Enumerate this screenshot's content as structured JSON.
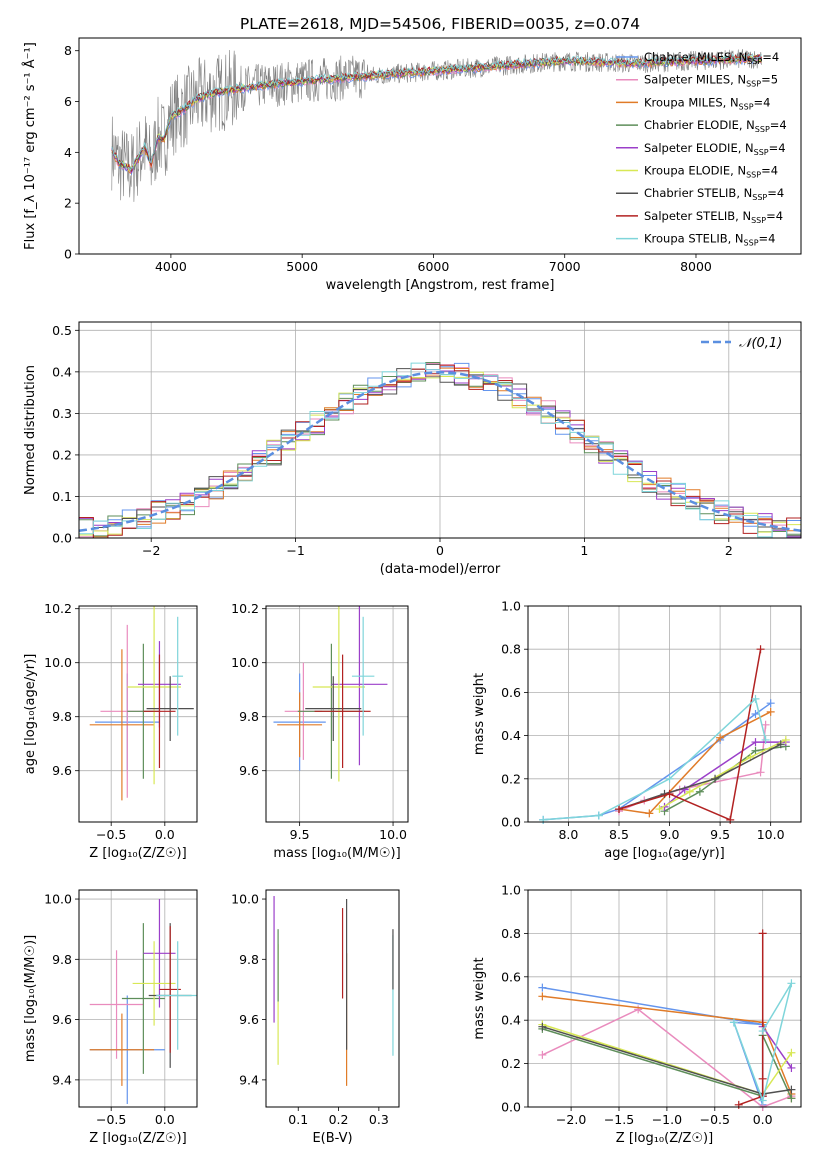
{
  "figure": {
    "title": "PLATE=2618, MJD=54506, FIBERID=0035, z=0.074"
  },
  "chart_data": [
    {
      "id": "spectrum",
      "type": "line",
      "xlabel": "wavelength [Angstrom, rest frame]",
      "ylabel": "Flux [f_λ 10⁻¹⁷ erg cm⁻² s⁻¹ Å⁻¹]",
      "xlim": [
        3300,
        8800
      ],
      "ylim": [
        0,
        8.5
      ],
      "xticks": [
        4000,
        5000,
        6000,
        7000,
        8000
      ],
      "yticks": [
        0,
        2,
        4,
        6,
        8
      ],
      "grid": false,
      "legend_position": "top-right",
      "data_color": "#808080",
      "model_x": [
        3550,
        3600,
        3700,
        3800,
        3850,
        3900,
        3950,
        4000,
        4100,
        4200,
        4300,
        4500,
        5000,
        5500,
        6000,
        6500,
        7000,
        7500,
        8000,
        8500
      ],
      "model_y": [
        4.1,
        3.6,
        3.3,
        4.2,
        3.5,
        4.6,
        4.5,
        5.4,
        5.7,
        6.1,
        6.3,
        6.5,
        6.8,
        7.0,
        7.2,
        7.4,
        7.6,
        7.5,
        7.6,
        7.7
      ],
      "series": [
        {
          "name": "Chabrier MILES, N_SSP=4",
          "color": "#6495ED"
        },
        {
          "name": "Salpeter MILES, N_SSP=5",
          "color": "#E98BBD"
        },
        {
          "name": "Kroupa MILES, N_SSP=4",
          "color": "#E07B28"
        },
        {
          "name": "Chabrier ELODIE, N_SSP=4",
          "color": "#5E8E5A"
        },
        {
          "name": "Salpeter ELODIE, N_SSP=4",
          "color": "#9B3FC9"
        },
        {
          "name": "Kroupa ELODIE, N_SSP=4",
          "color": "#D8E855"
        },
        {
          "name": "Chabrier STELIB, N_SSP=4",
          "color": "#505050"
        },
        {
          "name": "Salpeter STELIB, N_SSP=4",
          "color": "#B22222"
        },
        {
          "name": "Kroupa STELIB, N_SSP=4",
          "color": "#7FD5DA"
        }
      ]
    },
    {
      "id": "residuals",
      "type": "histogram",
      "xlabel": "(data-model)/error",
      "ylabel": "Normed distribution",
      "xlim": [
        -2.5,
        2.5
      ],
      "ylim": [
        0,
        0.52
      ],
      "xticks": [
        -2,
        -1,
        0,
        1,
        2
      ],
      "yticks": [
        0.0,
        0.1,
        0.2,
        0.3,
        0.4,
        0.5
      ],
      "grid": true,
      "legend_position": "top-right",
      "reference_curve": {
        "name": "𝒩(0,1)",
        "color": "#5B8FE0"
      },
      "bin_width": 0.1
    },
    {
      "id": "age-vs-Z",
      "type": "errorbar",
      "xlabel": "Z [log₁₀(Z/Z☉)]",
      "ylabel": "age  [log₁₀(age/yr)]",
      "xlim": [
        -0.8,
        0.3
      ],
      "ylim": [
        9.41,
        10.21
      ],
      "xticks": [
        -0.5,
        0.0
      ],
      "yticks": [
        9.6,
        9.8,
        10.0,
        10.2
      ],
      "grid": true,
      "points": [
        {
          "x": -0.35,
          "y": 9.78,
          "xerr": 0.3,
          "yerr": 0.18,
          "color": "#6495ED"
        },
        {
          "x": -0.35,
          "y": 9.82,
          "xerr": 0.25,
          "yerr": 0.32,
          "color": "#E98BBD"
        },
        {
          "x": -0.4,
          "y": 9.77,
          "xerr": 0.3,
          "yerr": 0.28,
          "color": "#E07B28"
        },
        {
          "x": -0.2,
          "y": 9.82,
          "xerr": 0.15,
          "yerr": 0.25,
          "color": "#5E8E5A"
        },
        {
          "x": -0.05,
          "y": 9.92,
          "xerr": 0.2,
          "yerr": 0.16,
          "color": "#9B3FC9"
        },
        {
          "x": -0.1,
          "y": 9.91,
          "xerr": 0.25,
          "yerr": 0.36,
          "color": "#D8E855"
        },
        {
          "x": 0.05,
          "y": 9.83,
          "xerr": 0.22,
          "yerr": 0.12,
          "color": "#505050"
        },
        {
          "x": -0.05,
          "y": 9.82,
          "xerr": 0.15,
          "yerr": 0.21,
          "color": "#B22222"
        },
        {
          "x": 0.12,
          "y": 9.95,
          "xerr": 0.05,
          "yerr": 0.22,
          "color": "#7FD5DA"
        }
      ]
    },
    {
      "id": "age-vs-mass",
      "type": "errorbar",
      "xlabel": "mass [log₁₀(M/M☉)]",
      "ylabel": "",
      "xlim": [
        9.32,
        10.08
      ],
      "ylim": [
        9.41,
        10.21
      ],
      "xticks": [
        9.5,
        10.0
      ],
      "yticks": [
        9.6,
        9.8,
        10.0,
        10.2
      ],
      "grid": true,
      "points": [
        {
          "x": 9.5,
          "y": 9.78,
          "xerr": 0.14,
          "yerr": 0.18,
          "color": "#6495ED"
        },
        {
          "x": 9.52,
          "y": 9.82,
          "xerr": 0.1,
          "yerr": 0.18,
          "color": "#E98BBD"
        },
        {
          "x": 9.5,
          "y": 9.77,
          "xerr": 0.12,
          "yerr": 0.12,
          "color": "#E07B28"
        },
        {
          "x": 9.67,
          "y": 9.82,
          "xerr": 0.18,
          "yerr": 0.25,
          "color": "#5E8E5A"
        },
        {
          "x": 9.82,
          "y": 9.92,
          "xerr": 0.15,
          "yerr": 0.3,
          "color": "#9B3FC9"
        },
        {
          "x": 9.71,
          "y": 9.91,
          "xerr": 0.14,
          "yerr": 0.35,
          "color": "#D8E855"
        },
        {
          "x": 9.68,
          "y": 9.83,
          "xerr": 0.15,
          "yerr": 0.12,
          "color": "#505050"
        },
        {
          "x": 9.73,
          "y": 9.82,
          "xerr": 0.15,
          "yerr": 0.21,
          "color": "#B22222"
        },
        {
          "x": 9.84,
          "y": 9.95,
          "xerr": 0.06,
          "yerr": 0.22,
          "color": "#7FD5DA"
        }
      ]
    },
    {
      "id": "weight-vs-age",
      "type": "line",
      "xlabel": "age  [log₁₀(age/yr)]",
      "ylabel": "mass weight",
      "xlim": [
        7.6,
        10.3
      ],
      "ylim": [
        0,
        1
      ],
      "xticks": [
        8.0,
        8.5,
        9.0,
        9.5,
        10.0
      ],
      "yticks": [
        0.0,
        0.2,
        0.4,
        0.6,
        0.8,
        1.0
      ],
      "grid": true,
      "series": [
        {
          "color": "#6495ED",
          "x": [
            7.75,
            8.3,
            8.5,
            9.5,
            9.85,
            10.0
          ],
          "y": [
            0.01,
            0.03,
            0.06,
            0.38,
            0.5,
            0.55
          ]
        },
        {
          "color": "#E98BBD",
          "x": [
            8.5,
            8.75,
            9.1,
            9.9,
            9.95
          ],
          "y": [
            0.05,
            0.1,
            0.15,
            0.23,
            0.45
          ]
        },
        {
          "color": "#E07B28",
          "x": [
            8.5,
            8.8,
            9.5,
            10.0
          ],
          "y": [
            0.06,
            0.04,
            0.39,
            0.51
          ]
        },
        {
          "color": "#5E8E5A",
          "x": [
            8.95,
            9.3,
            9.85,
            10.15
          ],
          "y": [
            0.05,
            0.14,
            0.33,
            0.35
          ]
        },
        {
          "color": "#9B3FC9",
          "x": [
            8.95,
            9.15,
            9.85,
            10.15
          ],
          "y": [
            0.07,
            0.15,
            0.37,
            0.37
          ]
        },
        {
          "color": "#D8E855",
          "x": [
            8.9,
            9.2,
            9.8,
            10.15
          ],
          "y": [
            0.06,
            0.14,
            0.3,
            0.38
          ]
        },
        {
          "color": "#505050",
          "x": [
            8.5,
            8.95,
            9.45,
            10.1
          ],
          "y": [
            0.06,
            0.13,
            0.2,
            0.36
          ]
        },
        {
          "color": "#B22222",
          "x": [
            8.5,
            9.0,
            9.6,
            9.9
          ],
          "y": [
            0.06,
            0.13,
            0.01,
            0.8
          ]
        },
        {
          "color": "#7FD5DA",
          "x": [
            7.75,
            8.3,
            9.0,
            9.85,
            9.95
          ],
          "y": [
            0.01,
            0.03,
            0.2,
            0.57,
            0.38
          ]
        }
      ]
    },
    {
      "id": "mass-vs-Z",
      "type": "errorbar",
      "xlabel": "Z [log₁₀(Z/Z☉)]",
      "ylabel": "mass [log₁₀(M/M☉)]",
      "xlim": [
        -0.8,
        0.3
      ],
      "ylim": [
        9.31,
        10.03
      ],
      "xticks": [
        -0.5,
        0.0
      ],
      "yticks": [
        9.4,
        9.6,
        9.8,
        10.0
      ],
      "grid": true,
      "points": [
        {
          "x": -0.35,
          "y": 9.5,
          "xerr": 0.35,
          "yerr": 0.18,
          "color": "#6495ED"
        },
        {
          "x": -0.45,
          "y": 9.65,
          "xerr": 0.25,
          "yerr": 0.18,
          "color": "#E98BBD"
        },
        {
          "x": -0.4,
          "y": 9.5,
          "xerr": 0.3,
          "yerr": 0.12,
          "color": "#E07B28"
        },
        {
          "x": -0.2,
          "y": 9.67,
          "xerr": 0.2,
          "yerr": 0.25,
          "color": "#5E8E5A"
        },
        {
          "x": -0.05,
          "y": 9.82,
          "xerr": 0.15,
          "yerr": 0.18,
          "color": "#9B3FC9"
        },
        {
          "x": -0.1,
          "y": 9.72,
          "xerr": 0.2,
          "yerr": 0.14,
          "color": "#D8E855"
        },
        {
          "x": 0.05,
          "y": 9.68,
          "xerr": 0.2,
          "yerr": 0.24,
          "color": "#505050"
        },
        {
          "x": 0.05,
          "y": 9.7,
          "xerr": 0.1,
          "yerr": 0.21,
          "color": "#B22222"
        },
        {
          "x": 0.12,
          "y": 9.68,
          "xerr": 0.2,
          "yerr": 0.18,
          "color": "#7FD5DA"
        }
      ]
    },
    {
      "id": "mass-vs-EBV",
      "type": "errorbar",
      "xlabel": "E(B-V)",
      "ylabel": "",
      "xlim": [
        0.02,
        0.35
      ],
      "ylim": [
        9.31,
        10.03
      ],
      "xticks": [
        0.1,
        0.2,
        0.3
      ],
      "yticks": [
        9.4,
        9.6,
        9.8,
        10.0
      ],
      "grid": false,
      "points": [
        {
          "x": 0.04,
          "y": 9.8,
          "xerr": 0,
          "yerr": 0.21,
          "color": "#9B3FC9"
        },
        {
          "x": 0.05,
          "y": 9.65,
          "xerr": 0,
          "yerr": 0.2,
          "color": "#D8E855"
        },
        {
          "x": 0.05,
          "y": 9.78,
          "xerr": 0,
          "yerr": 0.12,
          "color": "#5E8E5A"
        },
        {
          "x": 0.21,
          "y": 9.82,
          "xerr": 0,
          "yerr": 0.15,
          "color": "#B22222"
        },
        {
          "x": 0.22,
          "y": 9.6,
          "xerr": 0,
          "yerr": 0.22,
          "color": "#E07B28"
        },
        {
          "x": 0.22,
          "y": 9.75,
          "xerr": 0,
          "yerr": 0.25,
          "color": "#505050"
        },
        {
          "x": 0.335,
          "y": 9.68,
          "xerr": 0,
          "yerr": 0.2,
          "color": "#7FD5DA"
        },
        {
          "x": 0.335,
          "y": 9.8,
          "xerr": 0,
          "yerr": 0.1,
          "color": "#505050"
        }
      ]
    },
    {
      "id": "weight-vs-Z",
      "type": "line",
      "xlabel": "Z [log₁₀(Z/Z☉)]",
      "ylabel": "mass weight",
      "xlim": [
        -2.45,
        0.4
      ],
      "ylim": [
        0,
        1
      ],
      "xticks": [
        -2.0,
        -1.5,
        -1.0,
        -0.5,
        0.0
      ],
      "yticks": [
        0.0,
        0.2,
        0.4,
        0.6,
        0.8,
        1.0
      ],
      "grid": true,
      "series": [
        {
          "color": "#6495ED",
          "x": [
            -2.3,
            0.0,
            -0.3,
            0.0
          ],
          "y": [
            0.55,
            0.38,
            0.39,
            0.01
          ]
        },
        {
          "color": "#E98BBD",
          "x": [
            -2.3,
            -1.3,
            0.0,
            0.3
          ],
          "y": [
            0.24,
            0.45,
            0.0,
            0.05
          ]
        },
        {
          "color": "#E07B28",
          "x": [
            -2.3,
            0.0,
            0.3,
            0.3
          ],
          "y": [
            0.51,
            0.39,
            0.06,
            0.04
          ]
        },
        {
          "color": "#5E8E5A",
          "x": [
            -2.3,
            0.0,
            0.0,
            0.3
          ],
          "y": [
            0.36,
            0.05,
            0.33,
            0.04
          ]
        },
        {
          "color": "#9B3FC9",
          "x": [
            0.0,
            0.0,
            0.3
          ],
          "y": [
            0.05,
            0.37,
            0.18
          ]
        },
        {
          "color": "#D8E855",
          "x": [
            -2.3,
            0.0,
            0.3
          ],
          "y": [
            0.38,
            0.06,
            0.25
          ]
        },
        {
          "color": "#505050",
          "x": [
            -2.3,
            0.0,
            0.3
          ],
          "y": [
            0.37,
            0.06,
            0.08
          ]
        },
        {
          "color": "#B22222",
          "x": [
            -0.25,
            0.0,
            0.0,
            0.0
          ],
          "y": [
            0.01,
            0.05,
            0.8,
            0.13
          ]
        },
        {
          "color": "#7FD5DA",
          "x": [
            -0.3,
            0.0,
            0.3,
            0.0
          ],
          "y": [
            0.39,
            0.03,
            0.57,
            0.35
          ]
        }
      ]
    }
  ]
}
